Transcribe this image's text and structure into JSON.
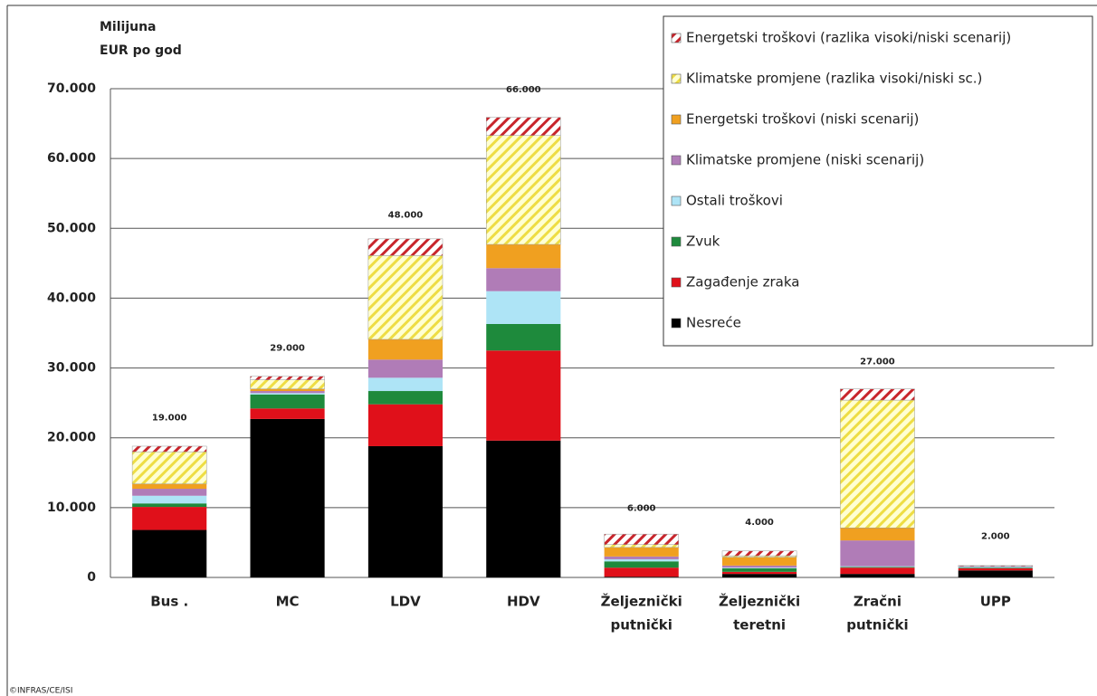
{
  "chart_data": {
    "type": "stacked_bar",
    "y_label": [
      "Milijuna",
      "EUR po god"
    ],
    "source": "©INFRAS/CE/ISI",
    "categories": [
      [
        "Bus ."
      ],
      [
        "MC"
      ],
      [
        "LDV"
      ],
      [
        "HDV"
      ],
      [
        "Željeznički",
        "putnički"
      ],
      [
        "Željeznički",
        "teretni"
      ],
      [
        "Zračni",
        "putnički"
      ],
      [
        "UPP"
      ]
    ],
    "series": [
      {
        "name": "Nesreće",
        "color": "#000000",
        "values": [
          6800,
          22700,
          18800,
          19600,
          100,
          500,
          500,
          1000
        ]
      },
      {
        "name": "Zagađenje zraka",
        "color": "#e0101a",
        "values": [
          3300,
          1500,
          6000,
          12900,
          1300,
          300,
          900,
          300
        ]
      },
      {
        "name": "Zvuk",
        "color": "#1e8a3c",
        "values": [
          500,
          2000,
          1900,
          3800,
          900,
          500,
          100,
          100
        ]
      },
      {
        "name": "Ostali troškovi",
        "color": "#aee4f6",
        "values": [
          1100,
          200,
          1900,
          4700,
          300,
          100,
          100,
          100
        ]
      },
      {
        "name": "Klimatske promjene (niski scenarij)",
        "color": "#b07cb7",
        "values": [
          1000,
          300,
          2600,
          3300,
          400,
          300,
          3700,
          100
        ]
      },
      {
        "name": "Energetski troškovi (niski scenarij)",
        "color": "#f0a020",
        "values": [
          700,
          300,
          2900,
          3400,
          1300,
          1200,
          1800,
          0
        ]
      },
      {
        "name": "Klimatske promjene (razlika visoki/niski sc.)",
        "color": "#eedd44",
        "hatch": true,
        "values": [
          4600,
          1300,
          12000,
          15600,
          400,
          200,
          18300,
          0
        ]
      },
      {
        "name": "Energetski troškovi (razlika visoki/niski scenarij)",
        "color": "#c8252c",
        "hatch": true,
        "values": [
          800,
          500,
          2400,
          2600,
          1500,
          700,
          1600,
          100
        ]
      }
    ],
    "totals": {
      "values": [
        19000,
        29000,
        48000,
        66000,
        6000,
        4000,
        27000,
        2000
      ],
      "value_labels": [
        "19.000",
        "29.000",
        "48.000",
        "66.000",
        "6.000",
        "4.000",
        "27.000",
        "2.000"
      ]
    },
    "ylim": [
      0,
      70000
    ],
    "yticks": [
      0,
      {
        "value": 10000,
        "label": "10.000"
      },
      {
        "value": 20000,
        "label": "20.000"
      },
      {
        "value": 30000,
        "label": "30.000"
      },
      {
        "value": 40000,
        "label": "40.000"
      },
      {
        "value": 50000,
        "label": "50.000"
      },
      {
        "value": 60000,
        "label": "60.000"
      },
      {
        "value": 70000,
        "label": "70.000"
      }
    ],
    "grid": true,
    "legend": "top-right"
  }
}
